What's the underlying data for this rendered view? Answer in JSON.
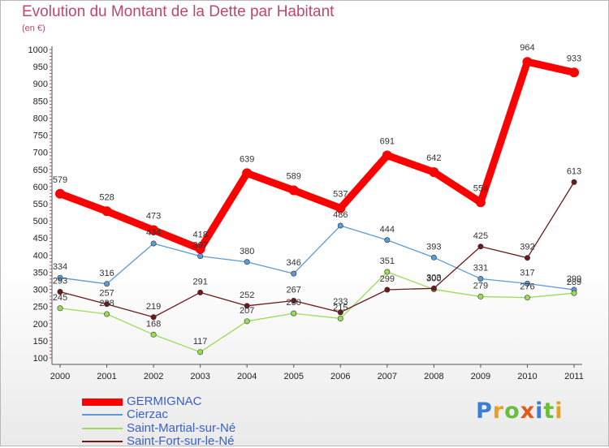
{
  "title": "Evolution du Montant de la Dette par Habitant",
  "subtitle": "(en €)",
  "logo": "Proxiti",
  "chart_data": {
    "type": "line",
    "title": "Evolution du Montant de la Dette par Habitant",
    "subtitle": "(en €)",
    "x": [
      "2000",
      "2001",
      "2002",
      "2003",
      "2004",
      "2005",
      "2006",
      "2007",
      "2008",
      "2009",
      "2010",
      "2011"
    ],
    "ylim": [
      100,
      1000
    ],
    "yticks": [
      100,
      150,
      200,
      250,
      300,
      350,
      400,
      450,
      500,
      550,
      600,
      650,
      700,
      750,
      800,
      850,
      900,
      950,
      1000
    ],
    "grid": false,
    "legend_position": "bottom-left",
    "series": [
      {
        "name": "GERMIGNAC",
        "color": "#ff0000",
        "values": [
          579,
          528,
          473,
          418,
          639,
          589,
          537,
          691,
          642,
          554,
          964,
          933
        ],
        "labels": [
          "579",
          "528",
          "473",
          "418",
          "639",
          "589",
          "537",
          "691",
          "642",
          "554",
          "964",
          "933"
        ]
      },
      {
        "name": "Cierzac",
        "color": "#5b9bd5",
        "values": [
          334,
          316,
          434,
          397,
          380,
          346,
          486,
          444,
          393,
          331,
          317,
          299
        ],
        "labels": [
          "334",
          "316",
          "434",
          "397",
          "380",
          "346",
          "486",
          "444",
          "393",
          "331",
          "317",
          "299"
        ]
      },
      {
        "name": "Saint-Martial-sur-Né",
        "color": "#99dd55",
        "values": [
          245,
          228,
          168,
          117,
          207,
          230,
          215,
          351,
          300,
          279,
          276,
          289
        ],
        "labels": [
          "245",
          "228",
          "168",
          "117",
          "207",
          "230",
          "215",
          "351",
          "300",
          "279",
          "276",
          "289"
        ]
      },
      {
        "name": "Saint-Fort-sur-le-Né",
        "color": "#6e1a1a",
        "values": [
          293,
          257,
          219,
          291,
          252,
          267,
          233,
          299,
          303,
          425,
          392,
          613
        ],
        "labels": [
          "293",
          "257",
          "219",
          "291",
          "252",
          "267",
          "233",
          "299",
          "303",
          "425",
          "392",
          "613"
        ]
      }
    ]
  }
}
